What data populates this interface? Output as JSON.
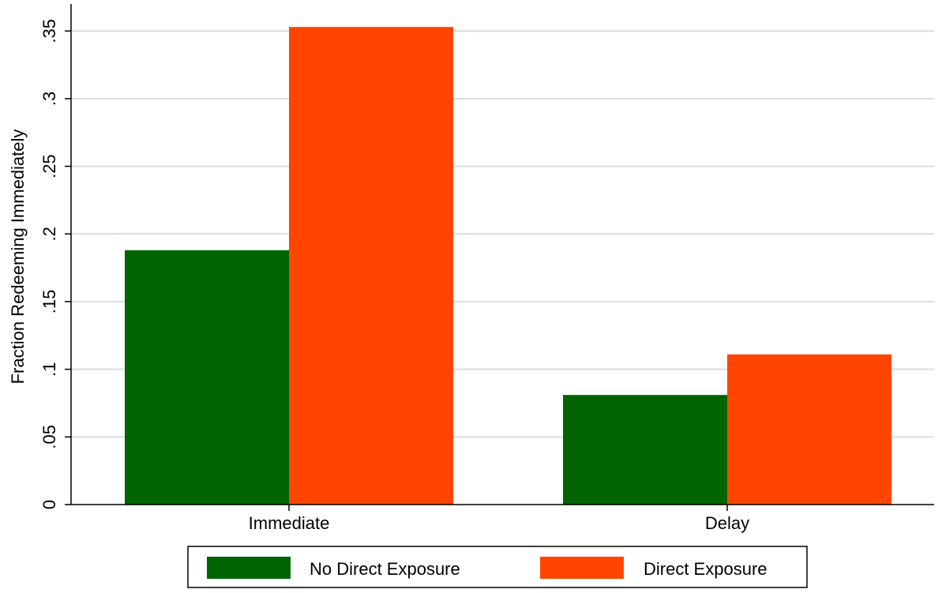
{
  "chart_data": {
    "type": "bar",
    "title": "",
    "xlabel": "",
    "ylabel": "Fraction Redeeming Immediately",
    "categories": [
      "Immediate",
      "Delay"
    ],
    "series": [
      {
        "name": "No Direct Exposure",
        "values": [
          0.188,
          0.081
        ],
        "color": "#006400"
      },
      {
        "name": "Direct Exposure",
        "values": [
          0.353,
          0.111
        ],
        "color": "#ff4500"
      }
    ],
    "ylim": [
      0,
      0.37
    ],
    "yticks": [
      0,
      0.05,
      0.1,
      0.15,
      0.2,
      0.25,
      0.3,
      0.35
    ],
    "ytick_labels": [
      "0",
      ".05",
      ".1",
      ".15",
      ".2",
      ".25",
      ".3",
      ".35"
    ],
    "grid": true,
    "legend_position": "bottom"
  }
}
